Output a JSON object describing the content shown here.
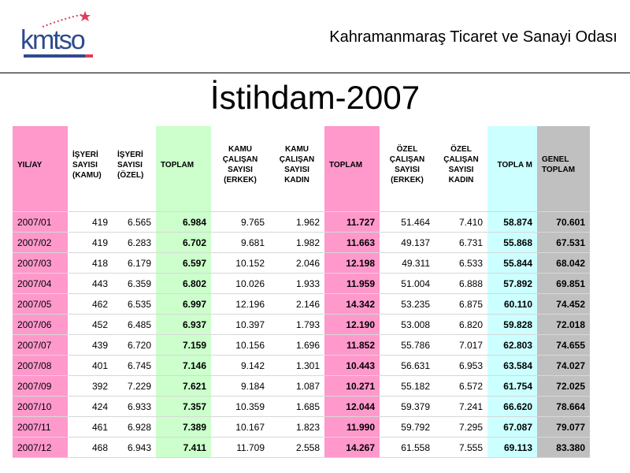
{
  "header": {
    "logo_text": "kmtso",
    "org_name": "Kahramanmaraş Ticaret ve Sanayi Odası"
  },
  "title": "İstihdam-2007",
  "table": {
    "columns": [
      "YIL/AY",
      "İŞYERİ SAYISI (KAMU)",
      "İŞYERİ SAYISI (ÖZEL)",
      "TOPLAM",
      "KAMU ÇALIŞAN SAYISI (ERKEK)",
      "KAMU ÇALIŞAN SAYISI KADIN",
      "TOPLAM",
      "ÖZEL ÇALIŞAN SAYISI (ERKEK)",
      "ÖZEL ÇALIŞAN SAYISI KADIN",
      "TOPLA M",
      "GENEL TOPLAM"
    ],
    "rows": [
      [
        "2007/01",
        "419",
        "6.565",
        "6.984",
        "9.765",
        "1.962",
        "11.727",
        "51.464",
        "7.410",
        "58.874",
        "70.601"
      ],
      [
        "2007/02",
        "419",
        "6.283",
        "6.702",
        "9.681",
        "1.982",
        "11.663",
        "49.137",
        "6.731",
        "55.868",
        "67.531"
      ],
      [
        "2007/03",
        "418",
        "6.179",
        "6.597",
        "10.152",
        "2.046",
        "12.198",
        "49.311",
        "6.533",
        "55.844",
        "68.042"
      ],
      [
        "2007/04",
        "443",
        "6.359",
        "6.802",
        "10.026",
        "1.933",
        "11.959",
        "51.004",
        "6.888",
        "57.892",
        "69.851"
      ],
      [
        "2007/05",
        "462",
        "6.535",
        "6.997",
        "12.196",
        "2.146",
        "14.342",
        "53.235",
        "6.875",
        "60.110",
        "74.452"
      ],
      [
        "2007/06",
        "452",
        "6.485",
        "6.937",
        "10.397",
        "1.793",
        "12.190",
        "53.008",
        "6.820",
        "59.828",
        "72.018"
      ],
      [
        "2007/07",
        "439",
        "6.720",
        "7.159",
        "10.156",
        "1.696",
        "11.852",
        "55.786",
        "7.017",
        "62.803",
        "74.655"
      ],
      [
        "2007/08",
        "401",
        "6.745",
        "7.146",
        "9.142",
        "1.301",
        "10.443",
        "56.631",
        "6.953",
        "63.584",
        "74.027"
      ],
      [
        "2007/09",
        "392",
        "7.229",
        "7.621",
        "9.184",
        "1.087",
        "10.271",
        "55.182",
        "6.572",
        "61.754",
        "72.025"
      ],
      [
        "2007/10",
        "424",
        "6.933",
        "7.357",
        "10.359",
        "1.685",
        "12.044",
        "59.379",
        "7.241",
        "66.620",
        "78.664"
      ],
      [
        "2007/11",
        "461",
        "6.928",
        "7.389",
        "10.167",
        "1.823",
        "11.990",
        "59.792",
        "7.295",
        "67.087",
        "79.077"
      ],
      [
        "2007/12",
        "468",
        "6.943",
        "7.411",
        "11.709",
        "2.558",
        "14.267",
        "61.558",
        "7.555",
        "69.113",
        "83.380"
      ]
    ]
  },
  "colors": {
    "pink": "#ff99cc",
    "green": "#ccffcc",
    "cyan": "#ccffff",
    "gray": "#c0c0c0"
  }
}
